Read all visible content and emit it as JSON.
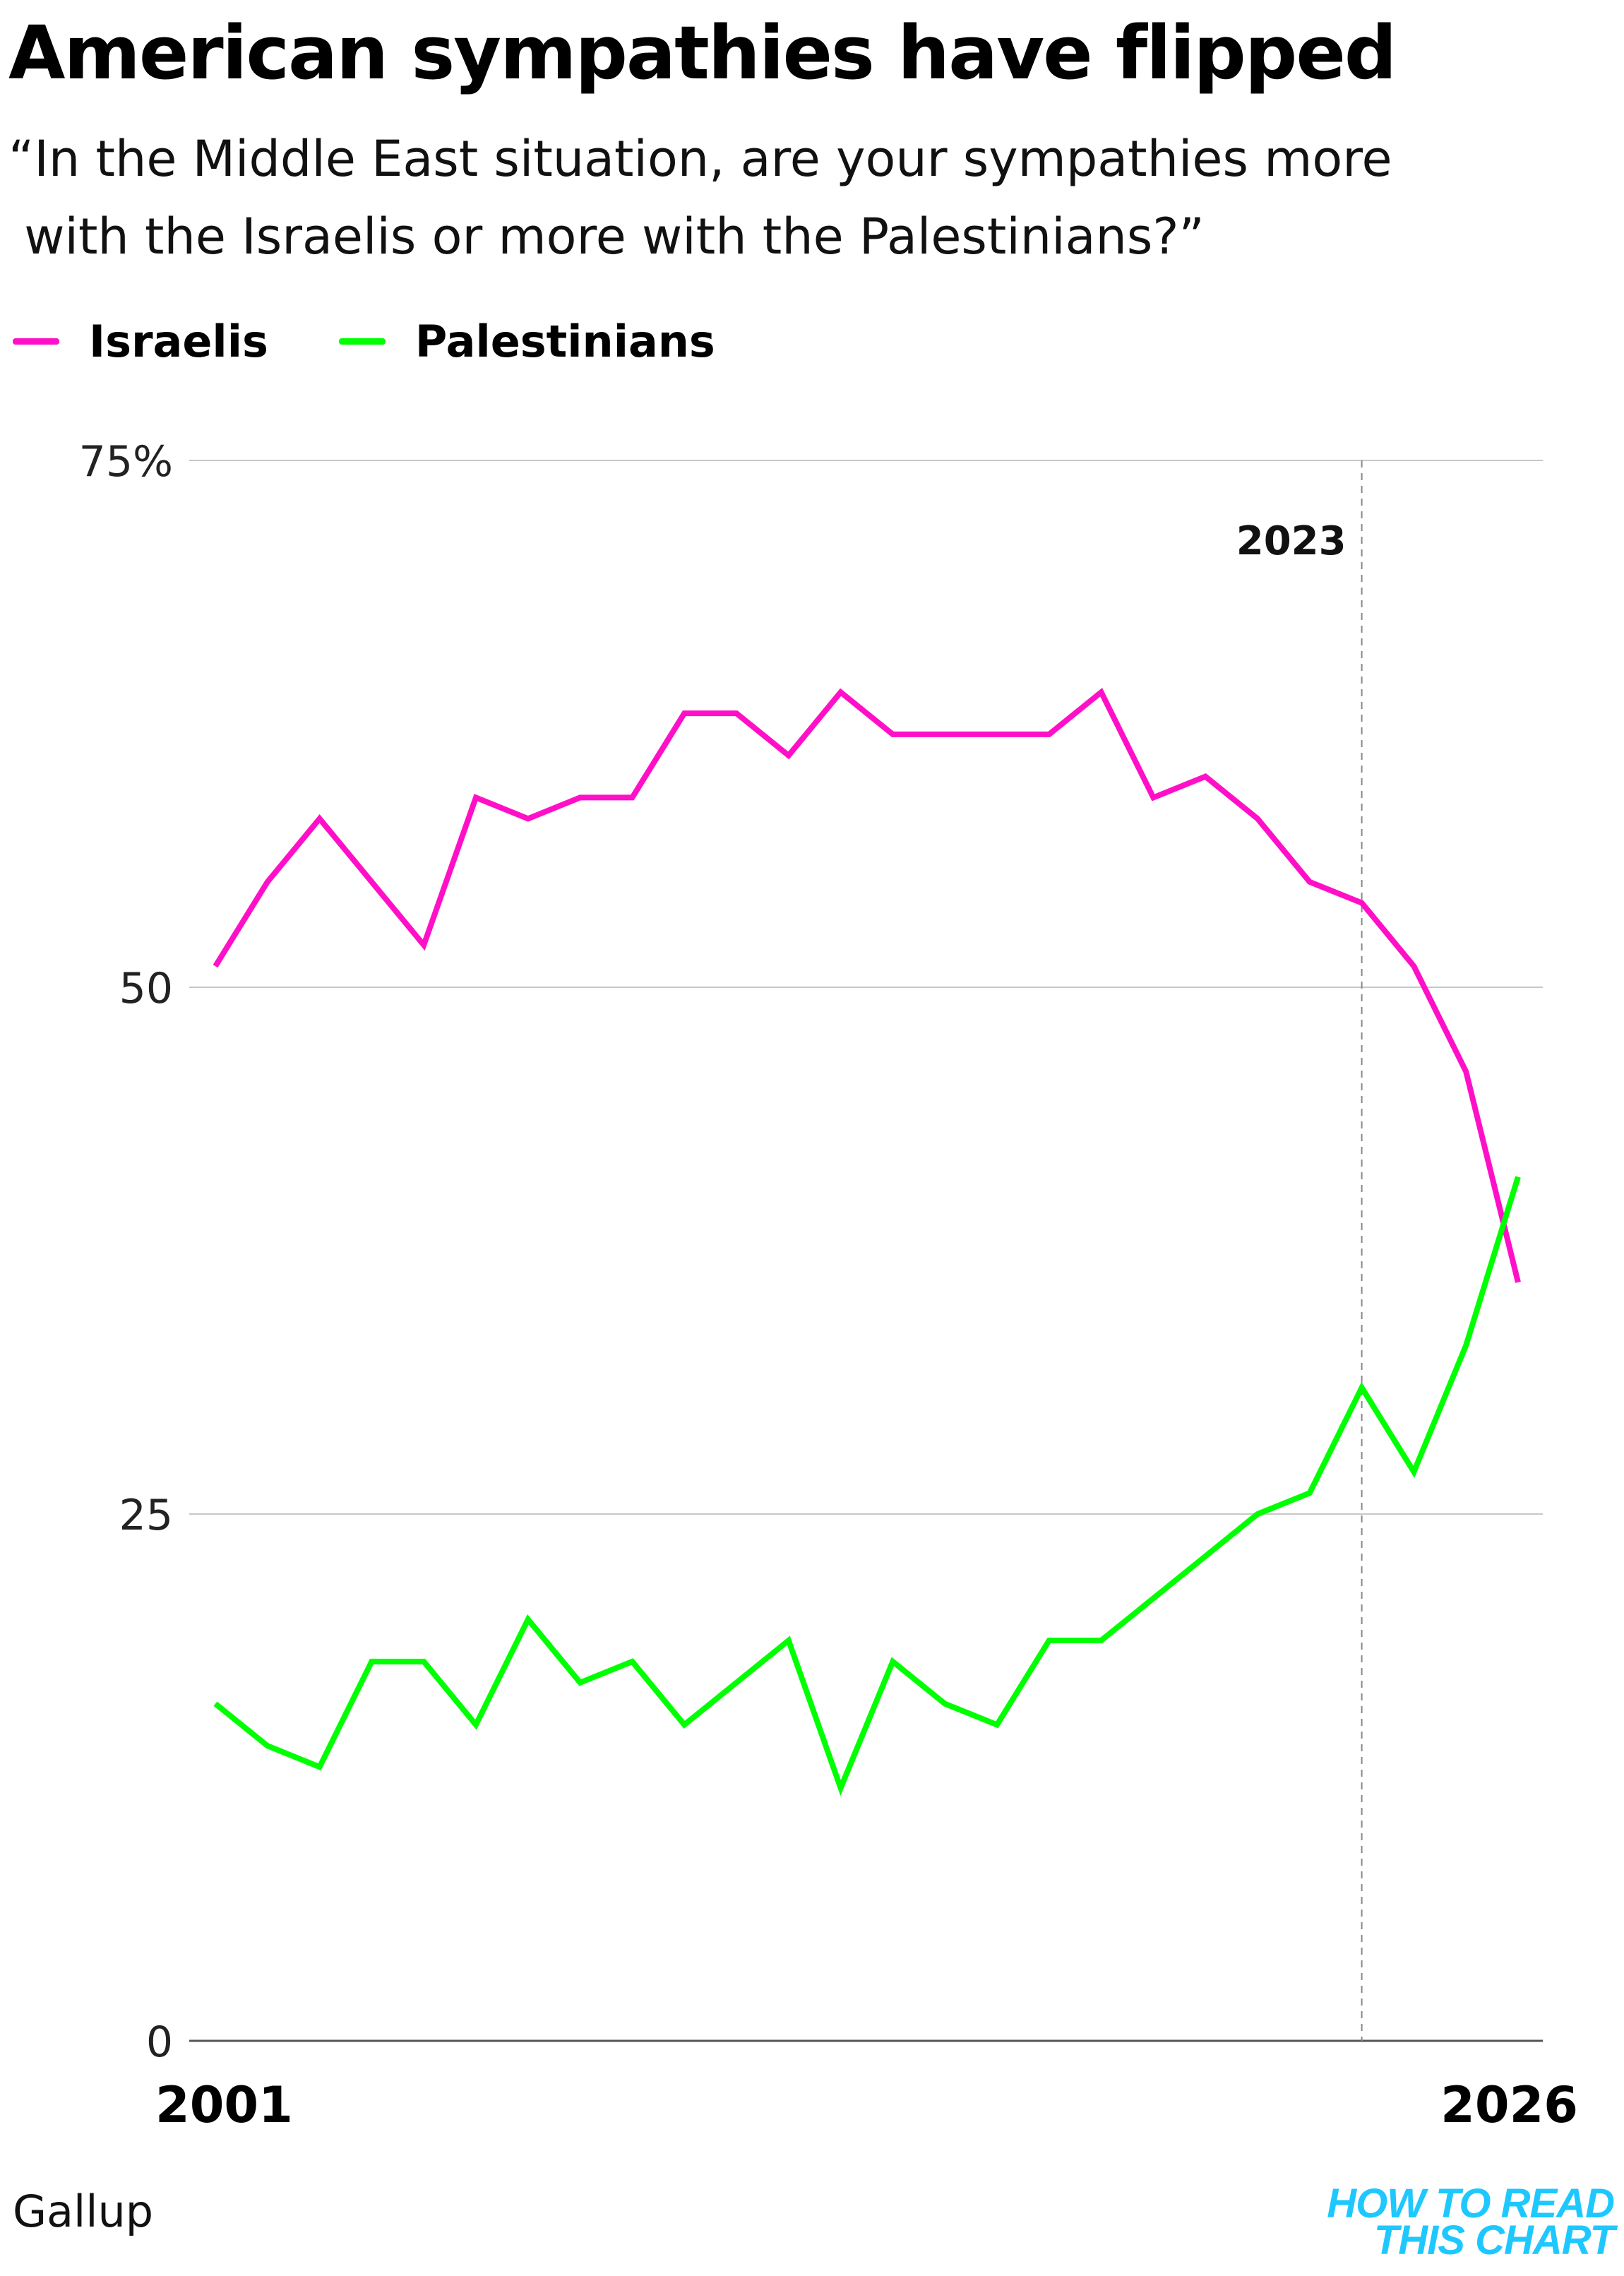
{
  "chart_data": {
    "type": "line",
    "title": "American sympathies have flipped",
    "subtitle_lines": [
      "“In the Middle East situation, are your sympathies more",
      " with the Israelis or more with the Palestinians?”"
    ],
    "x_start": 2001,
    "x_end": 2026,
    "x_tick_labels": [
      "2001",
      "2026"
    ],
    "ylim": [
      0,
      75
    ],
    "y_ticks": [
      0,
      25,
      50,
      75
    ],
    "y_tick_labels": [
      "0",
      "25",
      "50",
      "75%"
    ],
    "grid": true,
    "legend_position": "top-left",
    "annotation": {
      "x": 2023,
      "label": "2023"
    },
    "series": [
      {
        "name": "Israelis",
        "color": "#ff10c8",
        "x": [
          2001,
          2002,
          2003,
          2004,
          2005,
          2006,
          2007,
          2008,
          2009,
          2010,
          2011,
          2012,
          2013,
          2014,
          2015,
          2016,
          2017,
          2018,
          2019,
          2020,
          2021,
          2022,
          2023,
          2024,
          2025,
          2026
        ],
        "y": [
          51,
          55,
          58,
          55,
          52,
          59,
          58,
          59,
          59,
          63,
          63,
          61,
          64,
          62,
          62,
          62,
          62,
          64,
          59,
          60,
          58,
          55,
          54,
          51,
          46,
          36
        ]
      },
      {
        "name": "Palestinians",
        "color": "#00ff00",
        "x": [
          2001,
          2002,
          2003,
          2004,
          2005,
          2006,
          2007,
          2008,
          2009,
          2010,
          2011,
          2012,
          2013,
          2014,
          2015,
          2016,
          2017,
          2018,
          2019,
          2020,
          2021,
          2022,
          2023,
          2024,
          2025,
          2026
        ],
        "y": [
          16,
          14,
          13,
          18,
          18,
          15,
          20,
          17,
          18,
          15,
          17,
          19,
          12,
          18,
          16,
          15,
          19,
          19,
          21,
          23,
          25,
          26,
          31,
          27,
          33,
          41
        ]
      }
    ]
  },
  "source": "Gallup",
  "brand_lines": [
    "HOW TO READ",
    "THIS CHART"
  ]
}
